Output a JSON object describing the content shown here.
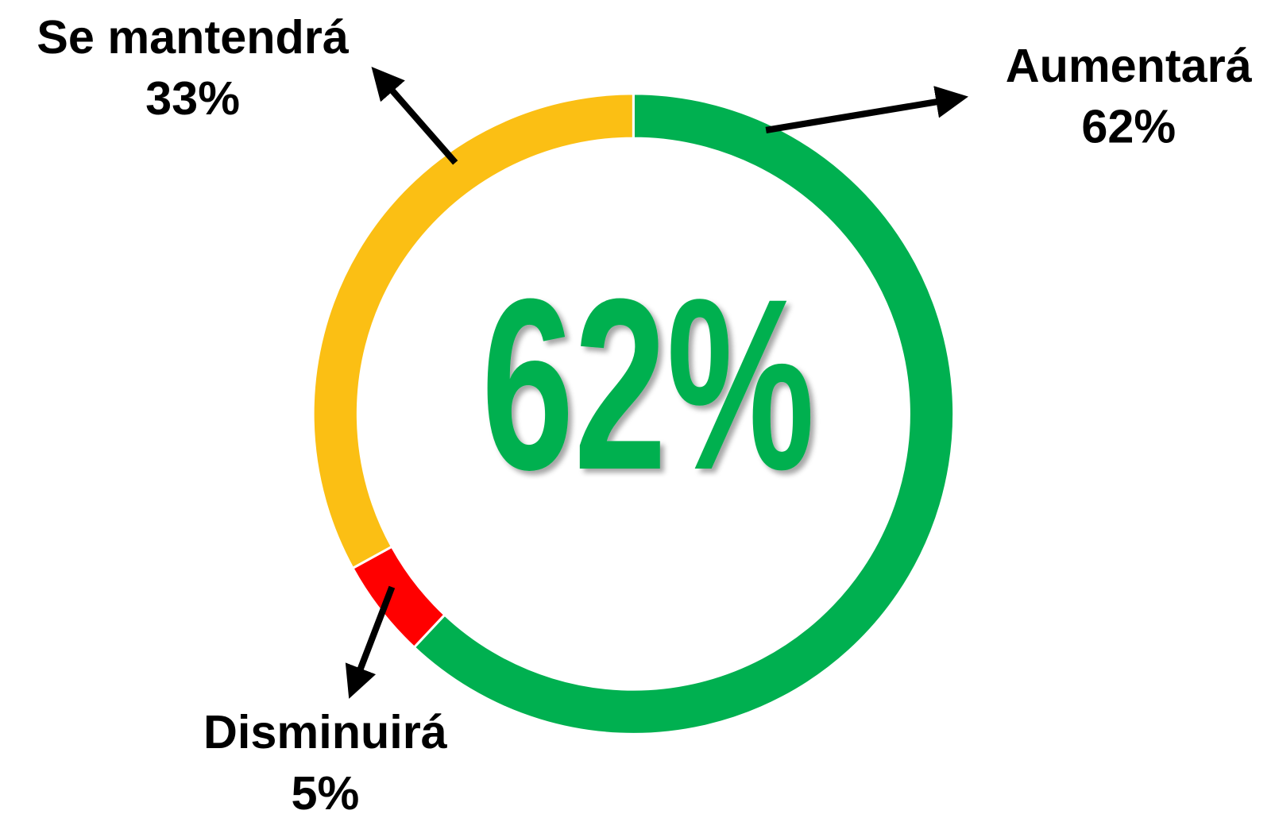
{
  "chart_data": {
    "type": "donut",
    "categories": [
      "Aumentará",
      "Disminuirá",
      "Se mantendrá"
    ],
    "values": [
      62,
      5,
      33
    ],
    "value_labels": [
      "62%",
      "5%",
      "33%"
    ],
    "colors": [
      "#00b050",
      "#ff0000",
      "#fbbf14"
    ],
    "center_text": "62%",
    "center_color": "#00b050"
  }
}
